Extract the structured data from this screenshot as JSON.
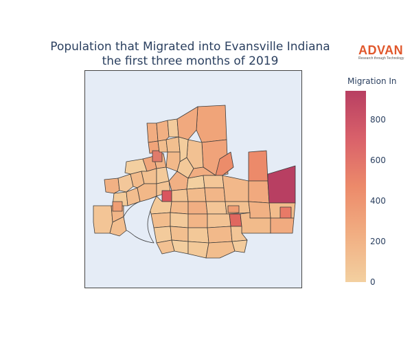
{
  "title": {
    "line1": "Population that Migrated into Evansville Indiana",
    "line2": "the first three months of 2019"
  },
  "logo": {
    "name": "ADVAN",
    "tagline": "Research through Technology"
  },
  "colorbar": {
    "title": "Migration In",
    "ticks": [
      "0",
      "200",
      "400",
      "600",
      "800"
    ],
    "range": [
      0,
      940
    ],
    "colors": [
      "#f3d0a0",
      "#f1ae82",
      "#ec8a6a",
      "#d9616a",
      "#b83f62"
    ]
  },
  "colors": {
    "background": "#e5ecf6",
    "region_stroke": "#3a3a3a"
  }
}
